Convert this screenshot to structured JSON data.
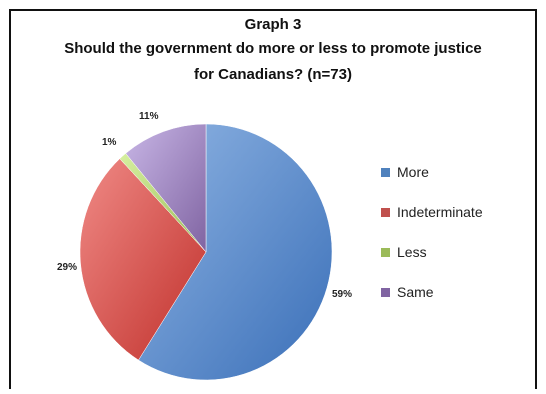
{
  "chart_data": {
    "type": "pie",
    "title": "Graph 3",
    "subtitle_line1": "Should the government do more or less to promote justice",
    "subtitle_line2": "for Canadians? (n=73)",
    "categories": [
      "More",
      "Indeterminate",
      "Less",
      "Same"
    ],
    "values": [
      59,
      29,
      1,
      11
    ],
    "value_labels": [
      "59%",
      "29%",
      "1%",
      "11%"
    ],
    "colors": [
      "#4f81bd",
      "#c0504d",
      "#9bbb59",
      "#8064a2"
    ],
    "legend_position": "right"
  }
}
